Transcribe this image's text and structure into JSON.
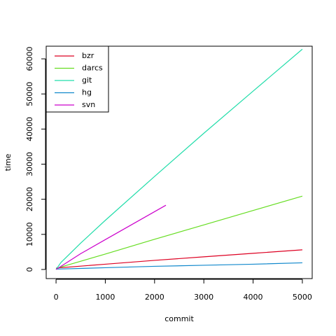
{
  "chart_data": {
    "type": "line",
    "x_label": "commit",
    "y_label": "time",
    "xlim": [
      -200,
      5200
    ],
    "ylim": [
      -2600,
      63600
    ],
    "xticks": [
      0,
      1000,
      2000,
      3000,
      4000,
      5000
    ],
    "yticks": [
      0,
      10000,
      20000,
      30000,
      40000,
      50000,
      60000
    ],
    "legend": "top-left",
    "series": [
      {
        "name": "bzr",
        "color": "#dd0022",
        "x": [
          0,
          1000,
          2000,
          3000,
          4000,
          5000
        ],
        "values": [
          400,
          1500,
          2600,
          3600,
          4600,
          5600
        ]
      },
      {
        "name": "darcs",
        "color": "#66dd22",
        "x": [
          0,
          1000,
          2000,
          3000,
          4000,
          5000
        ],
        "values": [
          300,
          4400,
          8600,
          12700,
          16800,
          20900
        ]
      },
      {
        "name": "git",
        "color": "#22ddaa",
        "x": [
          0,
          100,
          500,
          1000,
          2000,
          3000,
          4000,
          5000
        ],
        "values": [
          0,
          2000,
          7500,
          14000,
          26500,
          38800,
          50800,
          62750
        ]
      },
      {
        "name": "hg",
        "color": "#1188cc",
        "x": [
          0,
          1000,
          2000,
          3000,
          4000,
          5000
        ],
        "values": [
          100,
          500,
          900,
          1200,
          1500,
          1900
        ]
      },
      {
        "name": "svn",
        "color": "#cc00cc",
        "x": [
          0,
          500,
          1000,
          2230
        ],
        "values": [
          0,
          4500,
          8500,
          18300
        ]
      }
    ]
  }
}
